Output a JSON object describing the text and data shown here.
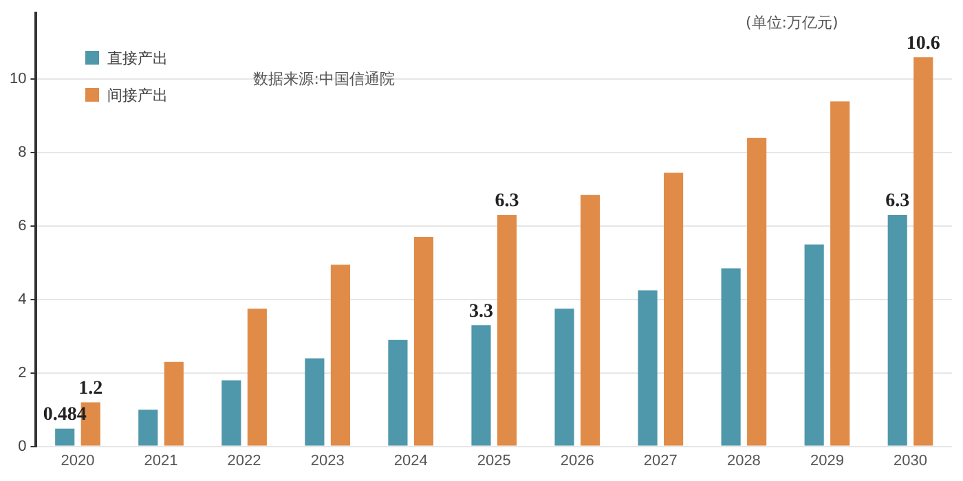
{
  "chart_data": {
    "type": "bar",
    "categories": [
      "2020",
      "2021",
      "2022",
      "2023",
      "2024",
      "2025",
      "2026",
      "2027",
      "2028",
      "2029",
      "2030"
    ],
    "series": [
      {
        "name": "直接产出",
        "color": "#4f97aa",
        "values": [
          0.484,
          1.0,
          1.8,
          2.4,
          2.9,
          3.3,
          3.75,
          4.25,
          4.85,
          5.5,
          6.3
        ],
        "value_labels": [
          "0.484",
          null,
          null,
          null,
          null,
          "3.3",
          null,
          null,
          null,
          null,
          "6.3"
        ]
      },
      {
        "name": "间接产出",
        "color": "#e08b47",
        "values": [
          1.2,
          2.3,
          3.75,
          4.95,
          5.7,
          6.3,
          6.85,
          7.45,
          8.4,
          9.4,
          10.6
        ],
        "value_labels": [
          "1.2",
          null,
          null,
          null,
          null,
          "6.3",
          null,
          null,
          null,
          null,
          "10.6"
        ]
      }
    ],
    "ylim": [
      0,
      11.8
    ],
    "yticks": [
      0,
      2,
      4,
      6,
      8,
      10
    ],
    "grid": "y",
    "legend": "top left",
    "annotations": [
      "数据来源:中国信通院",
      "(单位:万亿元)"
    ]
  }
}
